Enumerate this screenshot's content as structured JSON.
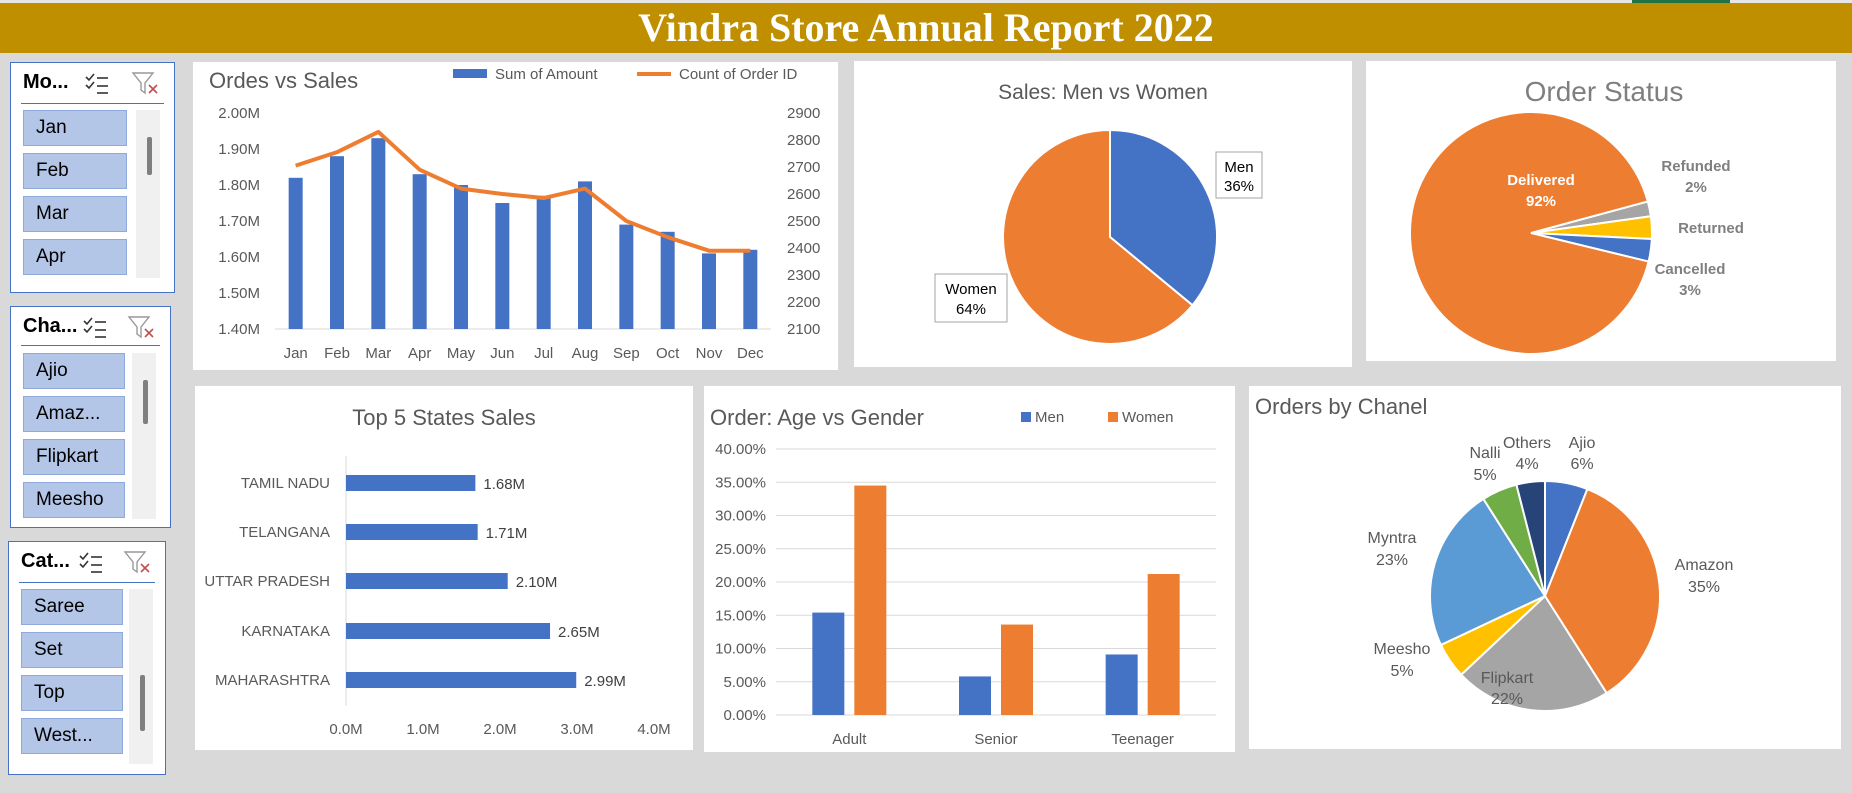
{
  "report": {
    "title": "Vindra Store Annual Report 2022"
  },
  "colors": {
    "blue": "#4472c4",
    "orange": "#ed7d31",
    "gray": "#a5a5a5",
    "yellow": "#ffc000",
    "lightblue": "#5b9bd5",
    "green": "#70ad47",
    "navy": "#264478",
    "banner": "#bf8f00"
  },
  "slicers": [
    {
      "header": "Mo...",
      "items": [
        "Jan",
        "Feb",
        "Mar",
        "Apr"
      ]
    },
    {
      "header": "Cha...",
      "items": [
        "Ajio",
        "Amaz...",
        "Flipkart",
        "Meesho"
      ]
    },
    {
      "header": "Cat...",
      "items": [
        "Saree",
        "Set",
        "Top",
        "West..."
      ]
    }
  ],
  "chart_data": [
    {
      "type": "bar",
      "title": "Ordes vs Sales",
      "categories": [
        "Jan",
        "Feb",
        "Mar",
        "Apr",
        "May",
        "Jun",
        "Jul",
        "Aug",
        "Sep",
        "Oct",
        "Nov",
        "Dec"
      ],
      "series": [
        {
          "name": "Sum of Amount",
          "kind": "bar",
          "axis": "left",
          "values": [
            1.82,
            1.88,
            1.93,
            1.83,
            1.8,
            1.75,
            1.77,
            1.81,
            1.69,
            1.67,
            1.61,
            1.62
          ]
        },
        {
          "name": "Count of Order ID",
          "kind": "line",
          "axis": "right",
          "values": [
            2705,
            2755,
            2830,
            2690,
            2620,
            2600,
            2585,
            2620,
            2500,
            2440,
            2390,
            2390
          ]
        }
      ],
      "yticks_left": [
        "2.00M",
        "1.90M",
        "1.80M",
        "1.70M",
        "1.60M",
        "1.50M",
        "1.40M"
      ],
      "yticks_right": [
        "2900",
        "2800",
        "2700",
        "2600",
        "2500",
        "2400",
        "2300",
        "2200",
        "2100"
      ],
      "ylim_left": [
        1.4,
        2.0
      ],
      "ylim_right": [
        2100,
        2900
      ],
      "legend": "top"
    },
    {
      "type": "pie",
      "title": "Sales: Men vs Women",
      "slices": [
        {
          "label": "Men",
          "value": 36,
          "pct": "36%"
        },
        {
          "label": "Women",
          "value": 64,
          "pct": "64%"
        }
      ]
    },
    {
      "type": "pie",
      "title": "Order Status",
      "slices": [
        {
          "label": "Delivered",
          "value": 92,
          "pct": "92%"
        },
        {
          "label": "Refunded",
          "value": 2,
          "pct": "2%"
        },
        {
          "label": "Returned",
          "value": 3,
          "pct": ""
        },
        {
          "label": "Cancelled",
          "value": 3,
          "pct": "3%"
        }
      ]
    },
    {
      "type": "bar",
      "orientation": "horizontal",
      "title": "Top 5 States Sales",
      "categories": [
        "TAMIL NADU",
        "TELANGANA",
        "UTTAR PRADESH",
        "KARNATAKA",
        "MAHARASHTRA"
      ],
      "values": [
        1.68,
        1.71,
        2.1,
        2.65,
        2.99
      ],
      "value_labels": [
        "1.68M",
        "1.71M",
        "2.10M",
        "2.65M",
        "2.99M"
      ],
      "xticks": [
        "0.0M",
        "1.0M",
        "2.0M",
        "3.0M",
        "4.0M"
      ],
      "xlim": [
        0,
        4
      ]
    },
    {
      "type": "bar",
      "title": "Order: Age vs Gender",
      "categories": [
        "Adult",
        "Senior",
        "Teenager"
      ],
      "series": [
        {
          "name": "Men",
          "values": [
            15.4,
            5.8,
            9.1
          ]
        },
        {
          "name": "Women",
          "values": [
            34.5,
            13.6,
            21.2
          ]
        }
      ],
      "yticks": [
        "40.00%",
        "35.00%",
        "30.00%",
        "25.00%",
        "20.00%",
        "15.00%",
        "10.00%",
        "5.00%",
        "0.00%"
      ],
      "ylim": [
        0,
        40
      ],
      "legend": "top-right"
    },
    {
      "type": "pie",
      "title": "Orders by Chanel",
      "slices": [
        {
          "label": "Ajio",
          "value": 6,
          "pct": "6%"
        },
        {
          "label": "Amazon",
          "value": 35,
          "pct": "35%"
        },
        {
          "label": "Flipkart",
          "value": 22,
          "pct": "22%"
        },
        {
          "label": "Meesho",
          "value": 5,
          "pct": "5%"
        },
        {
          "label": "Myntra",
          "value": 23,
          "pct": "23%"
        },
        {
          "label": "Nalli",
          "value": 5,
          "pct": "5%"
        },
        {
          "label": "Others",
          "value": 4,
          "pct": "4%"
        }
      ]
    }
  ]
}
